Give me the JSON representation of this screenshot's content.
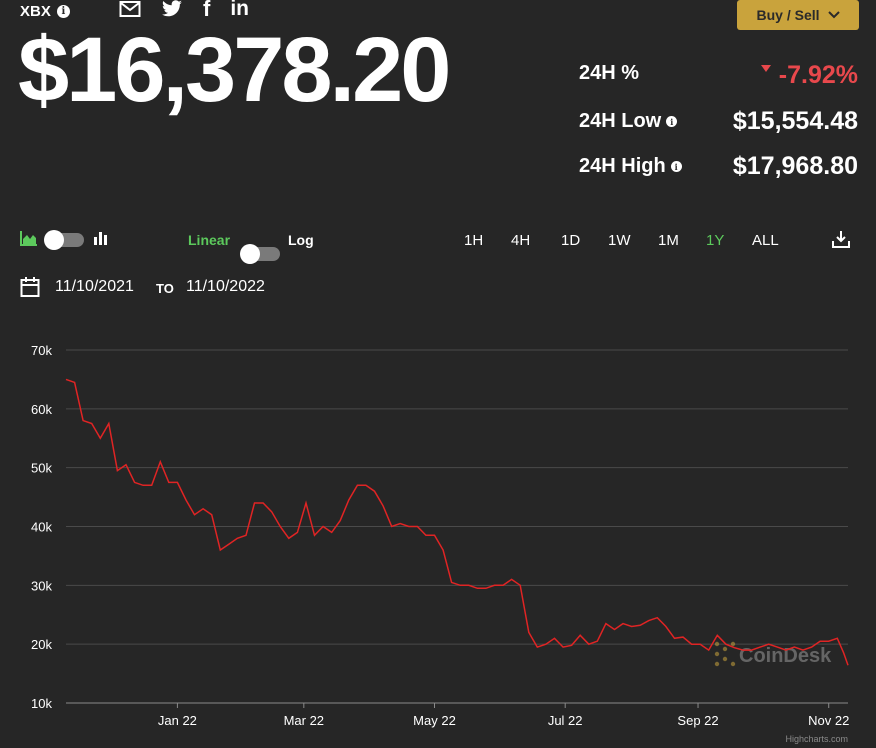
{
  "header": {
    "ticker": "XBX",
    "info_glyph": "i",
    "share_icons": [
      "mail-icon",
      "twitter-icon",
      "facebook-icon",
      "linkedin-icon"
    ],
    "facebook_glyph": "f",
    "linkedin_glyph": "in",
    "buy_sell_label": "Buy / Sell"
  },
  "price": {
    "value": "$16,378.20"
  },
  "stats": {
    "change_label": "24H %",
    "change_value": "-7.92%",
    "low_label": "24H Low",
    "low_value": "$15,554.48",
    "high_label": "24H High",
    "high_value": "$17,968.80"
  },
  "controls": {
    "linear_label": "Linear",
    "log_label": "Log",
    "ranges": [
      "1H",
      "4H",
      "1D",
      "1W",
      "1M",
      "1Y",
      "ALL"
    ],
    "active_range": "1Y",
    "date_from": "11/10/2021",
    "to_label": "TO",
    "date_to": "11/10/2022"
  },
  "colors": {
    "background": "#262626",
    "accent_green": "#5cc95c",
    "line_red": "#e02424",
    "negative": "#e8484c",
    "button_gold": "#c9a33c"
  },
  "watermark": "CoinDesk",
  "credit": "Highcharts.com",
  "chart_data": {
    "type": "line",
    "y_ticks": [
      "70k",
      "60k",
      "50k",
      "40k",
      "30k",
      "20k",
      "10k"
    ],
    "x_ticks": [
      "Jan 22",
      "Mar 22",
      "May 22",
      "Jul 22",
      "Sep 22",
      "Nov 22"
    ],
    "ylim": [
      10000,
      70000
    ],
    "x_range": [
      "2021-11-10",
      "2022-11-10"
    ],
    "grid": true,
    "series": [
      {
        "x": [
          "2021-11-10",
          "2021-11-14",
          "2021-11-18",
          "2021-11-22",
          "2021-11-26",
          "2021-11-30",
          "2021-12-04",
          "2021-12-08",
          "2021-12-12",
          "2021-12-16",
          "2021-12-20",
          "2021-12-24",
          "2021-12-28",
          "2022-01-01",
          "2022-01-05",
          "2022-01-09",
          "2022-01-13",
          "2022-01-17",
          "2022-01-21",
          "2022-01-25",
          "2022-01-29",
          "2022-02-02",
          "2022-02-06",
          "2022-02-10",
          "2022-02-14",
          "2022-02-18",
          "2022-02-22",
          "2022-02-26",
          "2022-03-02",
          "2022-03-06",
          "2022-03-10",
          "2022-03-14",
          "2022-03-18",
          "2022-03-22",
          "2022-03-26",
          "2022-03-30",
          "2022-04-03",
          "2022-04-07",
          "2022-04-11",
          "2022-04-15",
          "2022-04-19",
          "2022-04-23",
          "2022-04-27",
          "2022-05-01",
          "2022-05-05",
          "2022-05-09",
          "2022-05-13",
          "2022-05-17",
          "2022-05-21",
          "2022-05-25",
          "2022-05-29",
          "2022-06-02",
          "2022-06-06",
          "2022-06-10",
          "2022-06-14",
          "2022-06-18",
          "2022-06-22",
          "2022-06-26",
          "2022-06-30",
          "2022-07-04",
          "2022-07-08",
          "2022-07-12",
          "2022-07-16",
          "2022-07-20",
          "2022-07-24",
          "2022-07-28",
          "2022-08-01",
          "2022-08-05",
          "2022-08-09",
          "2022-08-13",
          "2022-08-17",
          "2022-08-21",
          "2022-08-25",
          "2022-08-29",
          "2022-09-02",
          "2022-09-06",
          "2022-09-10",
          "2022-09-14",
          "2022-09-18",
          "2022-09-22",
          "2022-09-26",
          "2022-09-30",
          "2022-10-04",
          "2022-10-08",
          "2022-10-12",
          "2022-10-16",
          "2022-10-20",
          "2022-10-24",
          "2022-10-28",
          "2022-11-01",
          "2022-11-05",
          "2022-11-08",
          "2022-11-10"
        ],
        "y": [
          65000,
          64500,
          58000,
          57500,
          55000,
          57500,
          49500,
          50500,
          47500,
          47000,
          47000,
          51000,
          47500,
          47500,
          44500,
          42000,
          43000,
          42000,
          36000,
          37000,
          38000,
          38500,
          44000,
          44000,
          42500,
          40000,
          38000,
          39000,
          44000,
          38500,
          40000,
          39000,
          41000,
          44500,
          47000,
          47000,
          46000,
          43500,
          40000,
          40500,
          40000,
          40000,
          38500,
          38500,
          36000,
          30500,
          30000,
          30000,
          29500,
          29500,
          30000,
          30000,
          31000,
          30000,
          22000,
          19500,
          20000,
          21000,
          19500,
          19800,
          21500,
          20000,
          20500,
          23500,
          22500,
          23500,
          23000,
          23200,
          24000,
          24500,
          23000,
          21000,
          21200,
          20000,
          20000,
          19000,
          21500,
          20000,
          19400,
          19000,
          19000,
          19500,
          20000,
          19500,
          19000,
          19500,
          19000,
          19500,
          20500,
          20500,
          21000,
          18500,
          16400
        ]
      }
    ]
  }
}
